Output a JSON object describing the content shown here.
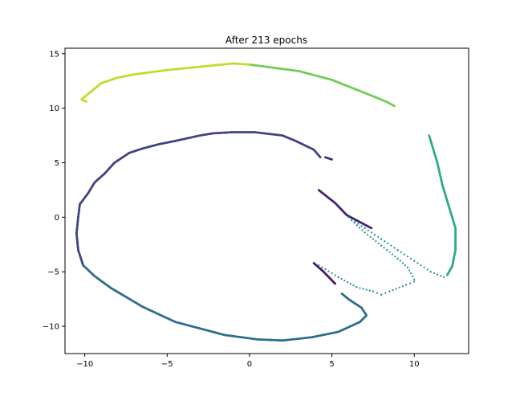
{
  "chart_data": {
    "type": "scatter",
    "title": "After 213 epochs",
    "xlabel": "",
    "ylabel": "",
    "xlim": [
      -11.2,
      13.3
    ],
    "ylim": [
      -12.5,
      15.5
    ],
    "xticks": [
      -10,
      -5,
      0,
      5,
      10
    ],
    "yticks": [
      -10,
      -5,
      0,
      5,
      10,
      15
    ],
    "colormap": "viridis",
    "grid": false,
    "segments": [
      {
        "t": 0.08,
        "dense": true,
        "points": [
          [
            3.9,
            -4.2
          ],
          [
            4.5,
            -5.0
          ],
          [
            5.2,
            -6.1
          ]
        ]
      },
      {
        "t": 0.1,
        "dense": true,
        "points": [
          [
            4.2,
            2.5
          ],
          [
            5.2,
            1.3
          ],
          [
            5.9,
            0.2
          ],
          [
            7.4,
            -1.0
          ]
        ]
      },
      {
        "t": 0.13,
        "dense": true,
        "points": [
          [
            5.0,
            5.3
          ],
          [
            4.6,
            5.5
          ]
        ]
      },
      {
        "t": 0.2,
        "dense": true,
        "points": [
          [
            4.3,
            5.5
          ],
          [
            3.9,
            6.2
          ],
          [
            2.8,
            7.0
          ],
          [
            2.0,
            7.5
          ],
          [
            0.3,
            7.8
          ],
          [
            -1.0,
            7.8
          ],
          [
            -2.2,
            7.7
          ],
          [
            -3.0,
            7.5
          ],
          [
            -4.5,
            7.0
          ],
          [
            -5.5,
            6.7
          ],
          [
            -6.5,
            6.3
          ],
          [
            -7.3,
            5.9
          ],
          [
            -7.7,
            5.5
          ],
          [
            -8.2,
            5.0
          ],
          [
            -8.8,
            4.0
          ],
          [
            -9.4,
            3.2
          ],
          [
            -9.8,
            2.2
          ],
          [
            -10.3,
            1.2
          ],
          [
            -10.4,
            0.0
          ],
          [
            -10.5,
            -1.5
          ],
          [
            -10.4,
            -3.0
          ],
          [
            -10.1,
            -4.4
          ]
        ]
      },
      {
        "t": 0.36,
        "dense": true,
        "points": [
          [
            -10.1,
            -4.4
          ],
          [
            -9.4,
            -5.4
          ],
          [
            -8.4,
            -6.5
          ],
          [
            -7.5,
            -7.3
          ],
          [
            -6.5,
            -8.2
          ],
          [
            -5.5,
            -8.9
          ],
          [
            -4.5,
            -9.6
          ],
          [
            -3.0,
            -10.2
          ],
          [
            -1.5,
            -10.8
          ],
          [
            0.5,
            -11.2
          ],
          [
            2.0,
            -11.3
          ],
          [
            3.8,
            -11.0
          ],
          [
            5.4,
            -10.5
          ],
          [
            6.7,
            -9.6
          ],
          [
            7.1,
            -9.0
          ],
          [
            6.8,
            -8.3
          ],
          [
            6.0,
            -7.5
          ],
          [
            5.6,
            -7.0
          ]
        ]
      },
      {
        "t": 0.48,
        "dense": false,
        "points": [
          [
            4.2,
            -4.4
          ],
          [
            5.4,
            -5.5
          ],
          [
            6.5,
            -6.4
          ],
          [
            7.5,
            -6.8
          ],
          [
            8.0,
            -7.1
          ],
          [
            8.5,
            -6.8
          ],
          [
            9.5,
            -6.2
          ],
          [
            10.0,
            -5.9
          ]
        ]
      },
      {
        "t": 0.5,
        "dense": false,
        "points": [
          [
            6.0,
            0.0
          ],
          [
            7.0,
            -1.0
          ],
          [
            8.0,
            -2.0
          ],
          [
            9.0,
            -3.0
          ],
          [
            10.0,
            -4.0
          ],
          [
            11.0,
            -5.0
          ],
          [
            11.8,
            -5.5
          ]
        ]
      },
      {
        "t": 0.52,
        "dense": false,
        "points": [
          [
            6.2,
            -0.3
          ],
          [
            7.0,
            -1.4
          ],
          [
            8.0,
            -2.6
          ],
          [
            9.0,
            -3.8
          ],
          [
            9.6,
            -4.6
          ],
          [
            10.0,
            -5.7
          ]
        ]
      },
      {
        "t": 0.62,
        "dense": true,
        "points": [
          [
            12.0,
            -5.3
          ],
          [
            12.3,
            -4.5
          ],
          [
            12.5,
            -3.0
          ],
          [
            12.5,
            -1.0
          ],
          [
            12.1,
            1.0
          ],
          [
            11.7,
            3.0
          ],
          [
            11.4,
            5.0
          ],
          [
            10.9,
            7.5
          ]
        ]
      },
      {
        "t": 0.78,
        "dense": true,
        "points": [
          [
            8.8,
            10.2
          ],
          [
            8.3,
            10.6
          ],
          [
            7.0,
            11.4
          ],
          [
            6.0,
            12.0
          ],
          [
            5.0,
            12.6
          ],
          [
            4.0,
            13.0
          ],
          [
            3.0,
            13.4
          ],
          [
            2.0,
            13.6
          ],
          [
            1.0,
            13.8
          ],
          [
            0.0,
            14.0
          ]
        ]
      },
      {
        "t": 0.9,
        "dense": true,
        "points": [
          [
            0.0,
            14.0
          ],
          [
            -1.0,
            14.1
          ],
          [
            -3.0,
            13.8
          ],
          [
            -5.0,
            13.5
          ],
          [
            -7.0,
            13.1
          ],
          [
            -8.0,
            12.8
          ],
          [
            -9.0,
            12.3
          ],
          [
            -10.2,
            10.8
          ],
          [
            -9.9,
            10.6
          ]
        ]
      }
    ]
  }
}
